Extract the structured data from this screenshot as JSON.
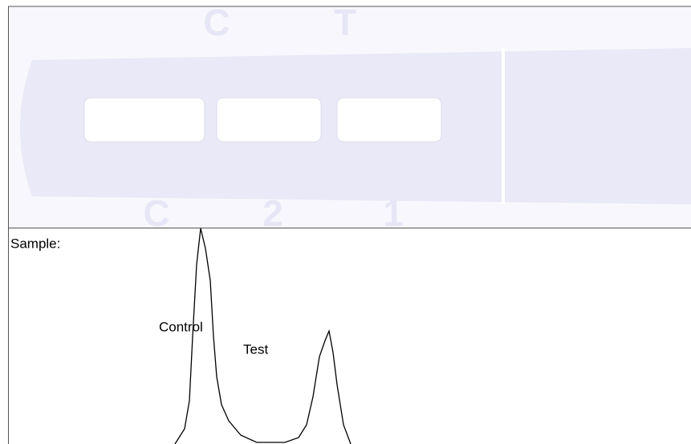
{
  "strip": {
    "top_marks": [
      "C",
      "T"
    ],
    "bottom_marks": [
      "C",
      "2",
      "1"
    ]
  },
  "profile": {
    "title": "Sample:",
    "peaks": [
      "Control",
      "Test"
    ]
  }
}
